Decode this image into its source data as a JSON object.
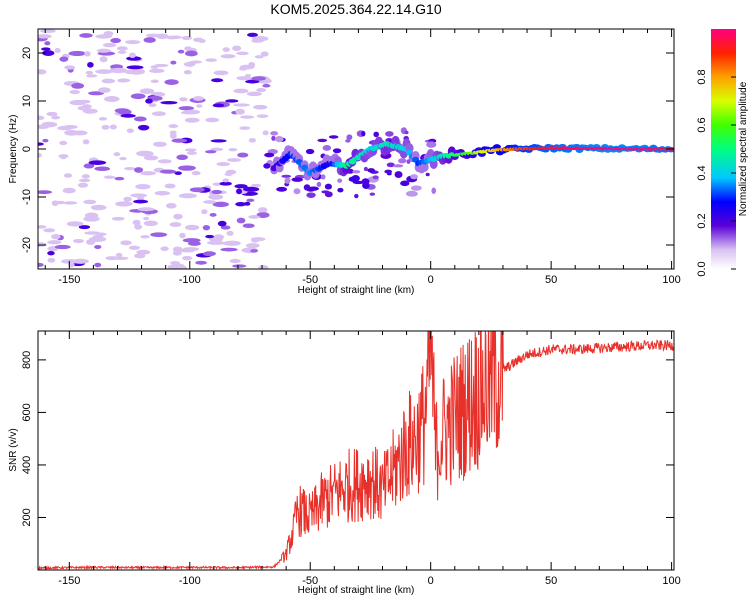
{
  "title": "KOM5.2025.364.22.14.G10",
  "chart_data": [
    {
      "type": "heatmap",
      "panel": "top",
      "xlabel": "Height of straight line (km)",
      "ylabel": "Frequency (Hz)",
      "xlim": [
        -163,
        101
      ],
      "ylim": [
        -25,
        25
      ],
      "xticks": [
        -150,
        -100,
        -50,
        0,
        50,
        100
      ],
      "yticks": [
        -20,
        -10,
        0,
        10,
        20
      ],
      "colorbar": {
        "label": "Normalized spectral amplitude",
        "range": [
          0,
          1
        ],
        "ticks": [
          0.0,
          0.2,
          0.4,
          0.6,
          0.8
        ]
      },
      "noise_region_x": [
        -163,
        -68
      ],
      "signal_track": [
        {
          "x": -65,
          "f": -4,
          "amp": 0.2
        },
        {
          "x": -58,
          "f": -1,
          "amp": 0.3
        },
        {
          "x": -50,
          "f": -5,
          "amp": 0.35
        },
        {
          "x": -42,
          "f": -3,
          "amp": 0.25
        },
        {
          "x": -35,
          "f": -3.5,
          "amp": 0.5
        },
        {
          "x": -25,
          "f": 0,
          "amp": 0.4
        },
        {
          "x": -18,
          "f": 1,
          "amp": 0.45
        },
        {
          "x": -10,
          "f": 0,
          "amp": 0.4
        },
        {
          "x": -5,
          "f": -3,
          "amp": 0.3
        },
        {
          "x": 5,
          "f": -1.5,
          "amp": 0.45
        },
        {
          "x": 15,
          "f": -1,
          "amp": 0.6
        },
        {
          "x": 25,
          "f": -0.3,
          "amp": 0.75
        },
        {
          "x": 35,
          "f": 0,
          "amp": 0.85
        },
        {
          "x": 50,
          "f": 0.2,
          "amp": 0.95
        },
        {
          "x": 70,
          "f": 0.1,
          "amp": 1.0
        },
        {
          "x": 90,
          "f": 0,
          "amp": 0.98
        },
        {
          "x": 101,
          "f": 0,
          "amp": 0.95
        }
      ]
    },
    {
      "type": "line",
      "panel": "bottom",
      "xlabel": "Height of straight line (km)",
      "ylabel": "SNR (v/v)",
      "xlim": [
        -163,
        101
      ],
      "ylim": [
        0,
        910
      ],
      "xticks": [
        -150,
        -100,
        -50,
        0,
        50,
        100
      ],
      "yticks": [
        200,
        400,
        600,
        800
      ],
      "series": [
        {
          "name": "SNR",
          "color": "#e8302a",
          "x": [
            -163,
            -140,
            -120,
            -100,
            -80,
            -65,
            -60,
            -57,
            -55,
            -50,
            -45,
            -40,
            -35,
            -30,
            -25,
            -20,
            -15,
            -10,
            -7,
            -5,
            -3,
            -1,
            0,
            2,
            5,
            8,
            12,
            20,
            30,
            40,
            50,
            60,
            70,
            80,
            90,
            101
          ],
          "y": [
            8,
            10,
            9,
            10,
            9,
            12,
            60,
            150,
            230,
            200,
            260,
            290,
            320,
            330,
            350,
            300,
            380,
            470,
            490,
            520,
            560,
            700,
            880,
            450,
            520,
            560,
            600,
            680,
            760,
            820,
            840,
            840,
            845,
            850,
            855,
            855
          ]
        }
      ]
    }
  ]
}
